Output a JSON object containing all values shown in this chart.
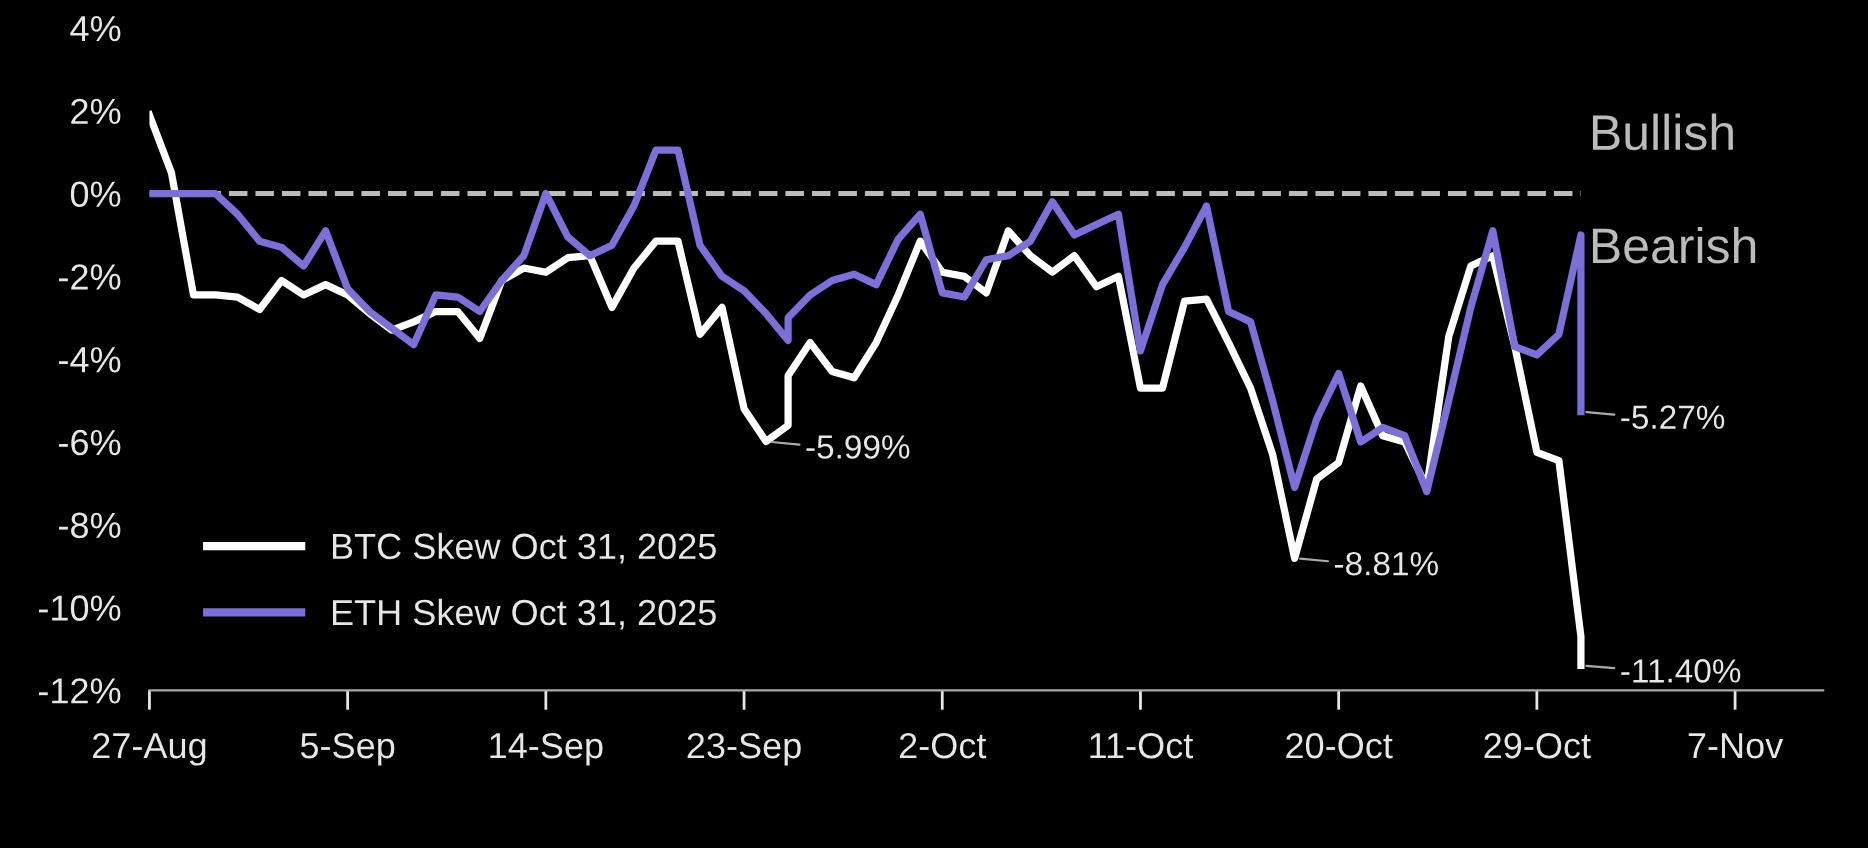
{
  "chart_data": {
    "type": "line",
    "series": [
      {
        "name": "BTC Skew Oct 31, 2025",
        "color": "#ffffff",
        "x": [
          "2025-08-27",
          "2025-08-28",
          "2025-08-29",
          "2025-08-30",
          "2025-08-31",
          "2025-09-01",
          "2025-09-02",
          "2025-09-03",
          "2025-09-04",
          "2025-09-05",
          "2025-09-06",
          "2025-09-07",
          "2025-09-08",
          "2025-09-09",
          "2025-09-10",
          "2025-09-11",
          "2025-09-12",
          "2025-09-13",
          "2025-09-14",
          "2025-09-15",
          "2025-09-16",
          "2025-09-17",
          "2025-09-18",
          "2025-09-19",
          "2025-09-20",
          "2025-09-21",
          "2025-09-22",
          "2025-09-23",
          "2025-09-24",
          "2025-09-25",
          "2025-09-25",
          "2025-09-26",
          "2025-09-27",
          "2025-09-28",
          "2025-09-29",
          "2025-09-30",
          "2025-10-01",
          "2025-10-02",
          "2025-10-03",
          "2025-10-04",
          "2025-10-05",
          "2025-10-06",
          "2025-10-07",
          "2025-10-08",
          "2025-10-09",
          "2025-10-10",
          "2025-10-11",
          "2025-10-12",
          "2025-10-13",
          "2025-10-14",
          "2025-10-15",
          "2025-10-16",
          "2025-10-17",
          "2025-10-18",
          "2025-10-19",
          "2025-10-20",
          "2025-10-21",
          "2025-10-22",
          "2025-10-23",
          "2025-10-24",
          "2025-10-25",
          "2025-10-26",
          "2025-10-27",
          "2025-10-28",
          "2025-10-29",
          "2025-10-30",
          "2025-10-31",
          "2025-10-31"
        ],
        "values": [
          1.9,
          0.5,
          -2.45,
          -2.45,
          -2.5,
          -2.8,
          -2.1,
          -2.45,
          -2.2,
          -2.45,
          -2.9,
          -3.3,
          -3.1,
          -2.85,
          -2.85,
          -3.5,
          -2.1,
          -1.8,
          -1.9,
          -1.55,
          -1.5,
          -2.75,
          -1.8,
          -1.15,
          -1.15,
          -3.4,
          -2.75,
          -5.2,
          -5.99,
          -5.6,
          -4.4,
          -3.6,
          -4.3,
          -4.45,
          -3.6,
          -2.45,
          -1.15,
          -1.9,
          -2.0,
          -2.4,
          -0.9,
          -1.5,
          -1.9,
          -1.5,
          -2.25,
          -2.0,
          -4.7,
          -4.7,
          -2.6,
          -2.55,
          -3.6,
          -4.7,
          -6.3,
          -8.81,
          -6.9,
          -6.5,
          -4.65,
          -5.85,
          -6.0,
          -7.1,
          -3.45,
          -1.75,
          -1.5,
          -3.7,
          -6.25,
          -6.45,
          -10.7,
          -11.4
        ]
      },
      {
        "name": "ETH Skew Oct 31, 2025",
        "color": "#7b70d8",
        "x": [
          "2025-08-27",
          "2025-08-28",
          "2025-08-29",
          "2025-08-30",
          "2025-08-31",
          "2025-09-01",
          "2025-09-02",
          "2025-09-03",
          "2025-09-04",
          "2025-09-05",
          "2025-09-06",
          "2025-09-07",
          "2025-09-08",
          "2025-09-09",
          "2025-09-10",
          "2025-09-11",
          "2025-09-12",
          "2025-09-13",
          "2025-09-14",
          "2025-09-15",
          "2025-09-16",
          "2025-09-17",
          "2025-09-18",
          "2025-09-19",
          "2025-09-20",
          "2025-09-21",
          "2025-09-22",
          "2025-09-23",
          "2025-09-24",
          "2025-09-25",
          "2025-09-25",
          "2025-09-26",
          "2025-09-27",
          "2025-09-28",
          "2025-09-29",
          "2025-09-30",
          "2025-10-01",
          "2025-10-02",
          "2025-10-03",
          "2025-10-04",
          "2025-10-05",
          "2025-10-06",
          "2025-10-07",
          "2025-10-08",
          "2025-10-09",
          "2025-10-10",
          "2025-10-11",
          "2025-10-12",
          "2025-10-13",
          "2025-10-14",
          "2025-10-15",
          "2025-10-16",
          "2025-10-17",
          "2025-10-18",
          "2025-10-19",
          "2025-10-20",
          "2025-10-21",
          "2025-10-22",
          "2025-10-23",
          "2025-10-24",
          "2025-10-25",
          "2025-10-26",
          "2025-10-27",
          "2025-10-28",
          "2025-10-29",
          "2025-10-30",
          "2025-10-31",
          "2025-10-31"
        ],
        "values": [
          0,
          0,
          0,
          0,
          -0.5,
          -1.15,
          -1.3,
          -1.75,
          -0.9,
          -2.3,
          -2.85,
          -3.25,
          -3.65,
          -2.45,
          -2.5,
          -2.85,
          -2.1,
          -1.5,
          0,
          -1.05,
          -1.5,
          -1.25,
          -0.3,
          1.05,
          1.05,
          -1.25,
          -2.0,
          -2.35,
          -2.9,
          -3.55,
          -3.0,
          -2.45,
          -2.1,
          -1.95,
          -2.2,
          -1.1,
          -0.5,
          -2.4,
          -2.5,
          -1.6,
          -1.5,
          -1.15,
          -0.2,
          -1.0,
          -0.75,
          -0.5,
          -3.8,
          -2.2,
          -1.3,
          -0.3,
          -2.85,
          -3.1,
          -5.0,
          -7.1,
          -5.45,
          -4.35,
          -6.0,
          -5.65,
          -5.85,
          -7.2,
          -5.0,
          -2.75,
          -0.9,
          -3.7,
          -3.9,
          -3.4,
          -1.0,
          -5.27
        ]
      }
    ],
    "xlim": [
      "2025-08-27",
      "2025-11-11"
    ],
    "xticks": [
      {
        "value": "2025-08-27",
        "label": "27-Aug"
      },
      {
        "value": "2025-09-05",
        "label": "5-Sep"
      },
      {
        "value": "2025-09-14",
        "label": "14-Sep"
      },
      {
        "value": "2025-09-23",
        "label": "23-Sep"
      },
      {
        "value": "2025-10-02",
        "label": "2-Oct"
      },
      {
        "value": "2025-10-11",
        "label": "11-Oct"
      },
      {
        "value": "2025-10-20",
        "label": "20-Oct"
      },
      {
        "value": "2025-10-29",
        "label": "29-Oct"
      },
      {
        "value": "2025-11-07",
        "label": "7-Nov"
      }
    ],
    "ylim": [
      -12,
      4
    ],
    "yticks": [
      {
        "value": 4,
        "label": "4%"
      },
      {
        "value": 2,
        "label": "2%"
      },
      {
        "value": 0,
        "label": "0%"
      },
      {
        "value": -2,
        "label": "-2%"
      },
      {
        "value": -4,
        "label": "-4%"
      },
      {
        "value": -6,
        "label": "-6%"
      },
      {
        "value": -8,
        "label": "-8%"
      },
      {
        "value": -10,
        "label": "-10%"
      },
      {
        "value": -12,
        "label": "-12%"
      }
    ],
    "ref_lines": [
      {
        "axis": "y",
        "value": 0,
        "color": "#bbbbbb",
        "line_style": "dashed"
      }
    ],
    "annotations": [
      "Bullish",
      "Bearish",
      {
        "text": "-5.99%",
        "x": "2025-09-24",
        "y": -5.99
      },
      {
        "text": "-8.81%",
        "x": "2025-10-18",
        "y": -8.81
      },
      {
        "text": "-11.40%",
        "x": "2025-10-31",
        "y": -11.4
      },
      {
        "text": "-5.27%",
        "x": "2025-10-31",
        "y": -5.27
      }
    ],
    "grid": false,
    "legend": "bottom left",
    "marker": "none",
    "line_style": "solid"
  }
}
